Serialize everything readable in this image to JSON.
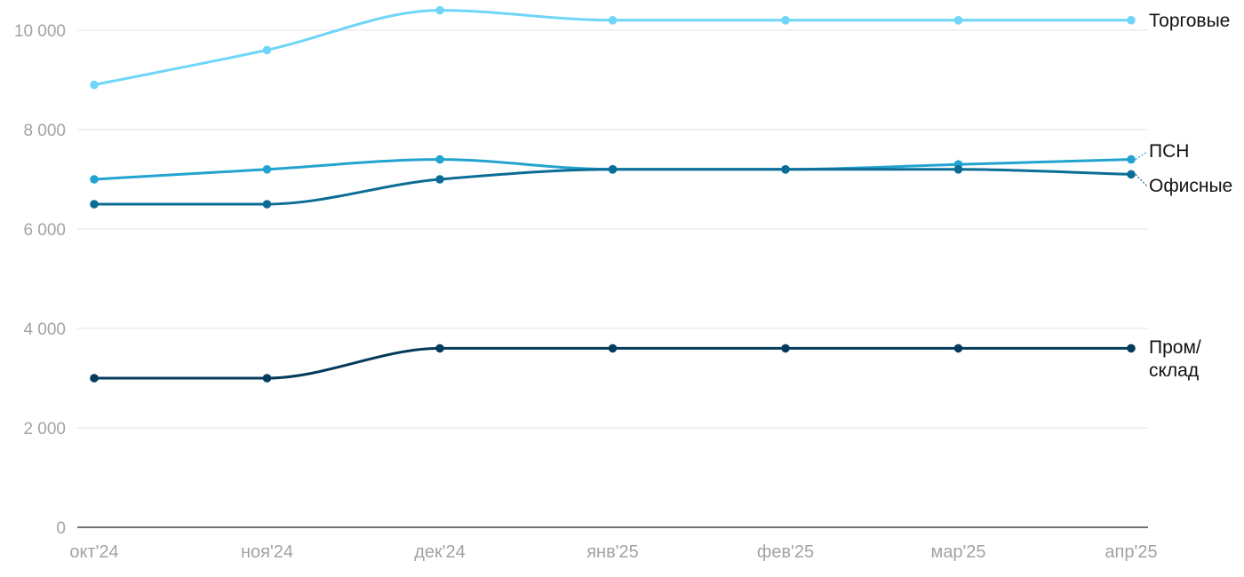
{
  "chart_data": {
    "type": "line",
    "categories": [
      "окт'24",
      "ноя'24",
      "дек'24",
      "янв'25",
      "фев'25",
      "мар'25",
      "апр'25"
    ],
    "ylim": [
      0,
      10500
    ],
    "yticks": [
      0,
      2000,
      4000,
      6000,
      8000,
      10000
    ],
    "ytick_labels": [
      "0",
      "2 000",
      "4 000",
      "6 000",
      "8 000",
      "10 000"
    ],
    "grid": true,
    "legend": "inline-right",
    "series": [
      {
        "name": "Торговые",
        "color": "#6fd6f7",
        "values": [
          8900,
          9600,
          10400,
          10200,
          10200,
          10200,
          10200
        ],
        "label_lines": [
          "Торговые"
        ]
      },
      {
        "name": "ПСН",
        "color": "#23a3cf",
        "values": [
          7000,
          7200,
          7400,
          7200,
          7200,
          7300,
          7400
        ],
        "label_lines": [
          "ПСН"
        ]
      },
      {
        "name": "Офисные",
        "color": "#0b6d96",
        "values": [
          6500,
          6500,
          7000,
          7200,
          7200,
          7200,
          7100
        ],
        "label_lines": [
          "Офисные"
        ]
      },
      {
        "name": "Пром/склад",
        "color": "#043a5c",
        "values": [
          3000,
          3000,
          3600,
          3600,
          3600,
          3600,
          3600
        ],
        "label_lines": [
          "Пром/",
          "склад"
        ]
      }
    ]
  }
}
